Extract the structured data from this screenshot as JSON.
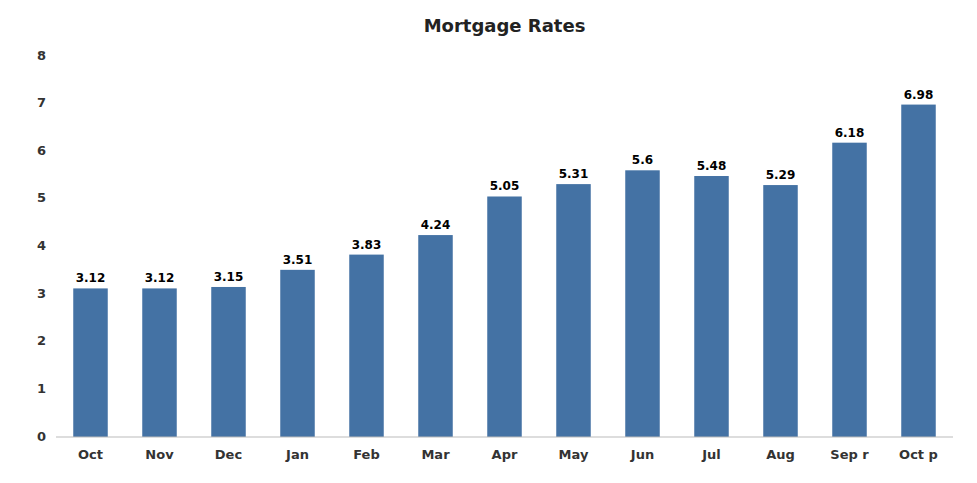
{
  "chart_data": {
    "type": "bar",
    "title": "Mortgage Rates",
    "categories": [
      "Oct",
      "Nov",
      "Dec",
      "Jan",
      "Feb",
      "Mar",
      "Apr",
      "May",
      "Jun",
      "Jul",
      "Aug",
      "Sep r",
      "Oct p"
    ],
    "values": [
      3.12,
      3.12,
      3.15,
      3.51,
      3.83,
      4.24,
      5.05,
      5.31,
      5.6,
      5.48,
      5.29,
      6.18,
      6.98
    ],
    "color": "#4472a4",
    "ylim": [
      0,
      8
    ],
    "yticks": [
      0,
      1,
      2,
      3,
      4,
      5,
      6,
      7,
      8
    ],
    "grid": false,
    "data_labels": true
  }
}
